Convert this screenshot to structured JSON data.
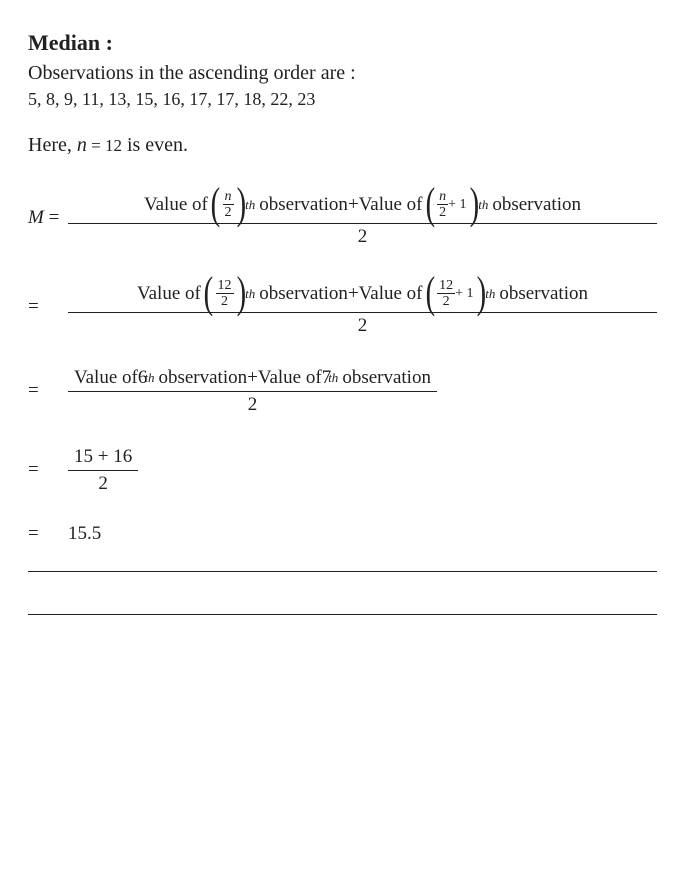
{
  "heading": "Median :",
  "subheading": "Observations in the ascending order are :",
  "data_list": "5, 8, 9, 11, 13, 15, 16, 17, 17, 18, 22, 23",
  "here_prefix": "Here, ",
  "n_var": "n",
  "equals": " = ",
  "n_value": "12",
  "is_even": " is even.",
  "M": "M",
  "value_of": "Value of ",
  "observation": " observation",
  "plus": " + ",
  "plus_one": " + 1",
  "th": "th",
  "two": "2",
  "twelve": "12",
  "six": "6",
  "seven": "7",
  "sum_vals": "15 + 16",
  "result": "15.5",
  "colors": {
    "text": "#212121",
    "background": "#ffffff"
  },
  "fonts": {
    "body_size": 19,
    "heading_size": 22
  }
}
